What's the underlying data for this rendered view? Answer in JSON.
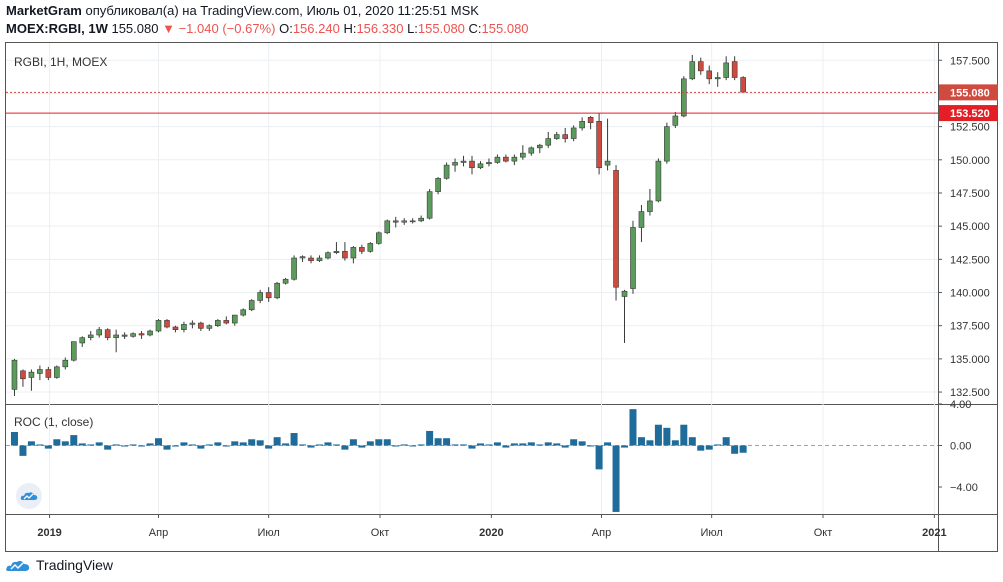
{
  "header": {
    "author": "MarketGram",
    "published_text": "опубликовал(а) на TradingView.com, Июль 01, 2020 11:25:51 MSK",
    "symbol": "MOEX:RGBI, 1W",
    "last": "155.080",
    "change": "−1.040 (−0.67%)",
    "o_label": "O:",
    "o_value": "156.240",
    "h_label": "H:",
    "h_value": "156.330",
    "l_label": "L:",
    "l_value": "155.080",
    "c_label": "C:",
    "c_value": "155.080"
  },
  "colors": {
    "up": "#5b9b5b",
    "down": "#d04b3f",
    "roc": "#1f6b9a",
    "level": "#e31e24"
  },
  "chart_data": [
    {
      "type": "candlestick",
      "title": "RGBI, 1H, MOEX",
      "ylim": [
        131.6,
        158.8
      ],
      "yticks": [
        132.5,
        135.0,
        137.5,
        140.0,
        142.5,
        145.0,
        147.5,
        150.0,
        152.5,
        155.0,
        157.5
      ],
      "ytick_labels": [
        "132.500",
        "135.000",
        "137.500",
        "140.000",
        "142.500",
        "145.000",
        "147.500",
        "150.000",
        "152.500",
        "155.000",
        "157.500"
      ],
      "x_range": [
        "2018-11-26",
        "2021-01-04"
      ],
      "x_ticks": [
        {
          "date": "2019-01-01",
          "label": "2019",
          "bold": true
        },
        {
          "date": "2019-04-01",
          "label": "Апр"
        },
        {
          "date": "2019-07-01",
          "label": "Июл"
        },
        {
          "date": "2019-10-01",
          "label": "Окт"
        },
        {
          "date": "2020-01-01",
          "label": "2020",
          "bold": true
        },
        {
          "date": "2020-04-01",
          "label": "Апр"
        },
        {
          "date": "2020-07-01",
          "label": "Июл"
        },
        {
          "date": "2020-10-01",
          "label": "Окт"
        },
        {
          "date": "2021-01-01",
          "label": "2021",
          "bold": true
        }
      ],
      "first_date": "2018-12-03",
      "candles": [
        [
          132.7,
          135.0,
          132.2,
          134.9
        ],
        [
          134.1,
          134.2,
          132.9,
          133.5
        ],
        [
          133.6,
          134.2,
          132.6,
          134.0
        ],
        [
          133.9,
          134.5,
          133.4,
          134.2
        ],
        [
          134.2,
          134.4,
          133.4,
          133.6
        ],
        [
          133.6,
          134.5,
          133.5,
          134.4
        ],
        [
          134.4,
          135.1,
          134.2,
          134.9
        ],
        [
          134.9,
          136.3,
          134.8,
          136.3
        ],
        [
          136.2,
          136.7,
          135.9,
          136.6
        ],
        [
          136.6,
          137.1,
          136.4,
          136.8
        ],
        [
          136.8,
          137.4,
          136.6,
          137.2
        ],
        [
          137.2,
          137.3,
          136.4,
          136.6
        ],
        [
          136.6,
          137.2,
          135.5,
          136.8
        ],
        [
          136.8,
          137.0,
          136.5,
          136.7
        ],
        [
          136.7,
          137.0,
          136.6,
          136.9
        ],
        [
          136.9,
          137.1,
          136.5,
          136.8
        ],
        [
          136.8,
          137.2,
          136.7,
          137.1
        ],
        [
          137.1,
          138.0,
          137.0,
          137.9
        ],
        [
          137.9,
          138.0,
          137.3,
          137.4
        ],
        [
          137.4,
          137.5,
          137.0,
          137.2
        ],
        [
          137.2,
          137.8,
          137.0,
          137.6
        ],
        [
          137.6,
          137.9,
          137.3,
          137.7
        ],
        [
          137.7,
          137.8,
          137.1,
          137.3
        ],
        [
          137.3,
          137.6,
          137.1,
          137.5
        ],
        [
          137.5,
          138.0,
          137.4,
          137.9
        ],
        [
          137.9,
          138.2,
          137.6,
          137.7
        ],
        [
          137.7,
          138.3,
          137.5,
          138.3
        ],
        [
          138.3,
          138.8,
          138.2,
          138.7
        ],
        [
          138.7,
          139.5,
          138.6,
          139.4
        ],
        [
          139.4,
          140.2,
          139.2,
          140.0
        ],
        [
          140.0,
          140.4,
          139.3,
          139.6
        ],
        [
          139.6,
          140.8,
          139.5,
          140.7
        ],
        [
          140.7,
          141.1,
          140.6,
          141.0
        ],
        [
          141.0,
          142.8,
          140.9,
          142.6
        ],
        [
          142.6,
          142.8,
          142.3,
          142.7
        ],
        [
          142.6,
          142.8,
          142.2,
          142.4
        ],
        [
          142.4,
          142.8,
          142.3,
          142.6
        ],
        [
          142.6,
          143.1,
          142.5,
          143.0
        ],
        [
          143.0,
          143.8,
          142.9,
          143.1
        ],
        [
          143.1,
          143.8,
          142.4,
          142.6
        ],
        [
          142.6,
          143.5,
          142.2,
          143.4
        ],
        [
          143.4,
          143.6,
          142.9,
          143.1
        ],
        [
          143.1,
          143.8,
          143.0,
          143.7
        ],
        [
          143.7,
          144.6,
          143.6,
          144.5
        ],
        [
          144.5,
          145.5,
          144.4,
          145.4
        ],
        [
          145.4,
          145.7,
          144.9,
          145.3
        ],
        [
          145.3,
          145.6,
          145.1,
          145.4
        ],
        [
          145.4,
          145.6,
          145.2,
          145.4
        ],
        [
          145.4,
          145.8,
          145.3,
          145.6
        ],
        [
          145.6,
          147.8,
          145.5,
          147.6
        ],
        [
          147.6,
          148.7,
          147.4,
          148.6
        ],
        [
          148.6,
          149.8,
          148.5,
          149.6
        ],
        [
          149.6,
          150.1,
          149.1,
          149.8
        ],
        [
          149.8,
          150.3,
          149.5,
          149.9
        ],
        [
          149.9,
          150.3,
          148.9,
          149.4
        ],
        [
          149.4,
          149.9,
          149.3,
          149.7
        ],
        [
          149.7,
          150.1,
          149.5,
          149.8
        ],
        [
          149.8,
          150.4,
          149.7,
          150.2
        ],
        [
          150.2,
          150.4,
          149.8,
          149.9
        ],
        [
          149.9,
          150.4,
          149.6,
          150.2
        ],
        [
          150.2,
          151.1,
          150.0,
          150.5
        ],
        [
          150.5,
          151.0,
          150.3,
          150.9
        ],
        [
          150.9,
          151.2,
          150.5,
          151.1
        ],
        [
          151.1,
          152.1,
          150.9,
          151.6
        ],
        [
          151.6,
          152.1,
          151.5,
          151.9
        ],
        [
          151.9,
          152.4,
          151.3,
          151.6
        ],
        [
          151.6,
          152.6,
          151.4,
          152.4
        ],
        [
          152.4,
          153.2,
          152.2,
          152.9
        ],
        [
          153.2,
          153.3,
          152.3,
          152.8
        ],
        [
          152.9,
          153.5,
          148.9,
          149.4
        ],
        [
          149.6,
          153.1,
          149.2,
          149.9
        ],
        [
          149.2,
          149.6,
          139.4,
          140.4
        ],
        [
          139.7,
          140.2,
          136.2,
          140.1
        ],
        [
          140.3,
          145.4,
          139.9,
          144.9
        ],
        [
          144.9,
          146.6,
          143.8,
          146.1
        ],
        [
          146.1,
          147.8,
          145.8,
          146.9
        ],
        [
          146.9,
          150.1,
          146.8,
          149.9
        ],
        [
          149.9,
          152.8,
          149.7,
          152.5
        ],
        [
          152.6,
          153.6,
          152.4,
          153.3
        ],
        [
          153.3,
          156.3,
          153.2,
          156.1
        ],
        [
          156.1,
          157.9,
          156.0,
          157.4
        ],
        [
          157.4,
          157.7,
          156.4,
          156.7
        ],
        [
          156.7,
          157.1,
          155.7,
          156.1
        ],
        [
          156.1,
          156.6,
          155.5,
          156.2
        ],
        [
          156.2,
          157.8,
          156.0,
          157.3
        ],
        [
          157.4,
          157.8,
          156.0,
          156.2
        ],
        [
          156.2,
          156.3,
          155.1,
          155.1
        ]
      ],
      "price_labels": [
        {
          "value": 155.08,
          "text": "155.080",
          "color": "#d04b3f",
          "line": "dotted"
        },
        {
          "value": 153.52,
          "text": "153.520",
          "color": "#e31e24",
          "line": "solid"
        }
      ]
    },
    {
      "type": "bar",
      "title": "ROC (1, close)",
      "ylim": [
        -6.6,
        3.9
      ],
      "yticks": [
        4.0,
        0.0,
        -4.0
      ],
      "ytick_labels": [
        "4.00",
        "0.00",
        "−4.00"
      ],
      "values": [
        1.3,
        -1.0,
        0.4,
        0.1,
        -0.3,
        0.6,
        0.4,
        1.0,
        0.2,
        0.1,
        0.3,
        -0.4,
        0.1,
        -0.1,
        0.1,
        -0.1,
        0.2,
        0.7,
        -0.4,
        -0.1,
        0.3,
        0.1,
        -0.3,
        0.1,
        0.3,
        -0.1,
        0.4,
        0.3,
        0.6,
        0.5,
        -0.3,
        0.8,
        0.2,
        1.2,
        0.1,
        -0.2,
        0.1,
        0.3,
        0.1,
        -0.4,
        0.6,
        -0.2,
        0.4,
        0.6,
        0.6,
        -0.1,
        0.1,
        0.0,
        0.1,
        1.4,
        0.7,
        0.7,
        0.1,
        0.1,
        -0.3,
        0.2,
        0.1,
        0.3,
        -0.2,
        0.2,
        0.2,
        0.3,
        0.1,
        0.3,
        0.2,
        -0.2,
        0.6,
        0.4,
        -0.1,
        -2.3,
        0.3,
        -6.4,
        -0.2,
        3.5,
        0.8,
        0.5,
        2.0,
        1.7,
        0.5,
        2.0,
        0.8,
        -0.5,
        -0.4,
        0.1,
        0.8,
        -0.8,
        -0.7
      ],
      "zero_line": true
    }
  ],
  "footer": {
    "brand": "TradingView"
  }
}
